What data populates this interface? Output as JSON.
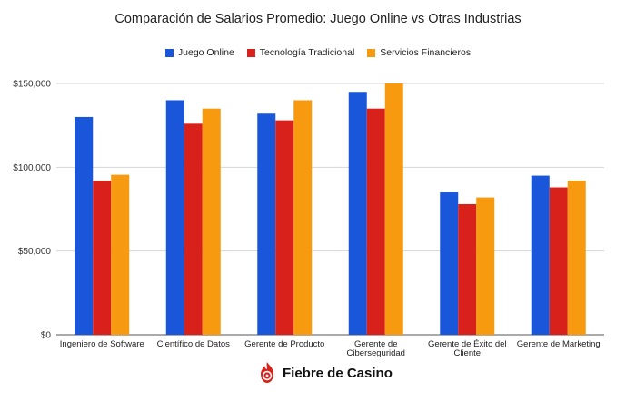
{
  "chart_data": {
    "type": "bar",
    "title": "Comparación de Salarios Promedio: Juego Online vs Otras Industrias",
    "xlabel": "",
    "ylabel": "",
    "categories": [
      [
        "Ingeniero de Software"
      ],
      [
        "Científico de Datos"
      ],
      [
        "Gerente de Producto"
      ],
      [
        "Gerente de",
        "Ciberseguridad"
      ],
      [
        "Gerente de Éxito del",
        "Cliente"
      ],
      [
        "Gerente de Marketing"
      ]
    ],
    "series": [
      {
        "name": "Juego Online",
        "color": "#1a56d9",
        "values": [
          130000,
          140000,
          132000,
          145000,
          85000,
          95000
        ]
      },
      {
        "name": "Tecnología Tradicional",
        "color": "#d9211c",
        "values": [
          92000,
          126000,
          128000,
          135000,
          78000,
          88000
        ]
      },
      {
        "name": "Servicios Financieros",
        "color": "#f79a0f",
        "values": [
          95500,
          135000,
          140000,
          150000,
          82000,
          92000
        ]
      }
    ],
    "ylim": [
      0,
      150000
    ],
    "yticks": [
      {
        "value": 0,
        "label": "$0"
      },
      {
        "value": 50000,
        "label": "$50,000"
      },
      {
        "value": 100000,
        "label": "$100,000"
      },
      {
        "value": 150000,
        "label": "$150,000"
      }
    ],
    "grid": true,
    "legend_position": "top"
  },
  "brand": {
    "name": "Fiebre de Casino",
    "logo_icon": "flame-chip-icon",
    "logo_color": "#d9211c"
  }
}
